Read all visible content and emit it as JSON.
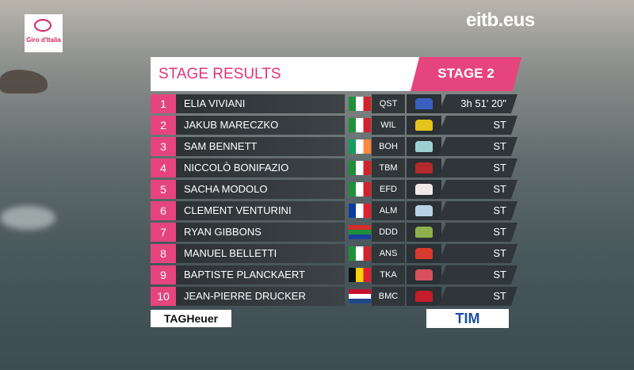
{
  "logos": {
    "broadcaster": "eitb.eus",
    "race": "Giro d'Italia",
    "sponsor_left": "TAGHeuer",
    "sponsor_right": "TIM"
  },
  "header": {
    "title": "STAGE RESULTS",
    "stage": "STAGE 2"
  },
  "table": {
    "rows": [
      [
        1,
        "ELIA VIVIANI",
        "QST",
        "3h 51' 20\""
      ],
      [
        2,
        "JAKUB MARECZKO",
        "WIL",
        "ST"
      ],
      [
        3,
        "SAM BENNETT",
        "BOH",
        "ST"
      ],
      [
        4,
        "NICCOLÒ BONIFAZIO",
        "TBM",
        "ST"
      ],
      [
        5,
        "SACHA MODOLO",
        "EFD",
        "ST"
      ],
      [
        6,
        "CLEMENT VENTURINI",
        "ALM",
        "ST"
      ],
      [
        7,
        "RYAN GIBBONS",
        "DDD",
        "ST"
      ],
      [
        8,
        "MANUEL BELLETTI",
        "ANS",
        "ST"
      ],
      [
        9,
        "BAPTISTE PLANCKAERT",
        "TKA",
        "ST"
      ],
      [
        10,
        "JEAN-PIERRE DRUCKER",
        "BMC",
        "ST"
      ]
    ]
  }
}
